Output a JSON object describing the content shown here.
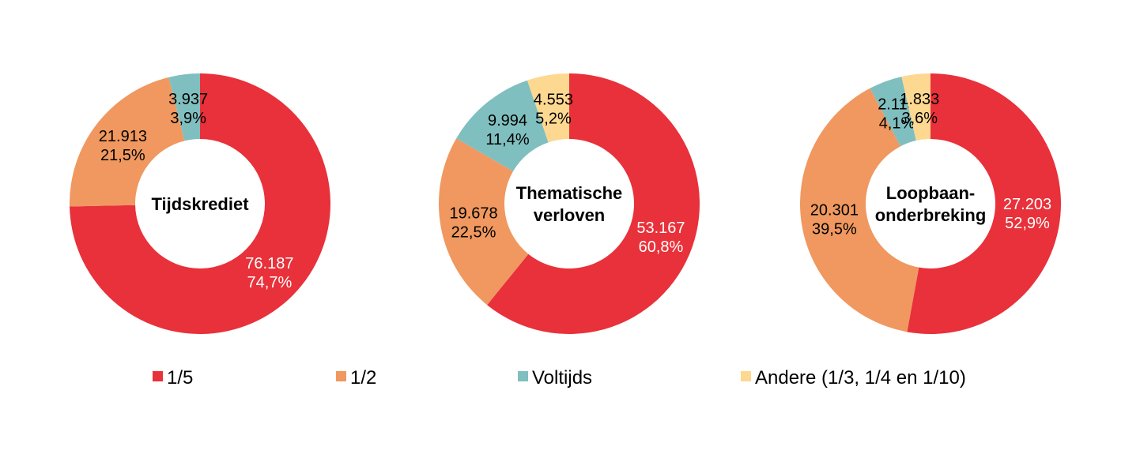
{
  "chart_data": {
    "type": "pie",
    "variant": "donut",
    "legend_position": "bottom",
    "categories": [
      "1/5",
      "1/2",
      "Voltijds",
      "Andere (1/3, 1/4 en 1/10)"
    ],
    "colors": [
      "#E8313A",
      "#F0985F",
      "#80BFBF",
      "#FDD891"
    ],
    "charts": [
      {
        "title": "Tijdskrediet",
        "title_lines": [
          "Tijdskrediet"
        ],
        "values": [
          76187,
          21913,
          3937,
          0
        ],
        "value_labels": [
          "76.187",
          "21.913",
          "3.937",
          ""
        ],
        "percent_labels": [
          "74,7%",
          "21,5%",
          "3,9%",
          ""
        ]
      },
      {
        "title": "Thematische verloven",
        "title_lines": [
          "Thematische",
          "verloven"
        ],
        "values": [
          53167,
          19678,
          9994,
          4553
        ],
        "value_labels": [
          "53.167",
          "19.678",
          "9.994",
          "4.553"
        ],
        "percent_labels": [
          "60,8%",
          "22,5%",
          "11,4%",
          "5,2%"
        ]
      },
      {
        "title": "Loopbaanonderbreking",
        "title_lines": [
          "Loopbaan-",
          "onderbreking"
        ],
        "values": [
          27203,
          20301,
          2113,
          1833
        ],
        "value_labels": [
          "27.203",
          "20.301",
          "2.113",
          "1.833"
        ],
        "percent_labels": [
          "52,9%",
          "39,5%",
          "4,1%",
          "3,6%"
        ]
      }
    ]
  }
}
